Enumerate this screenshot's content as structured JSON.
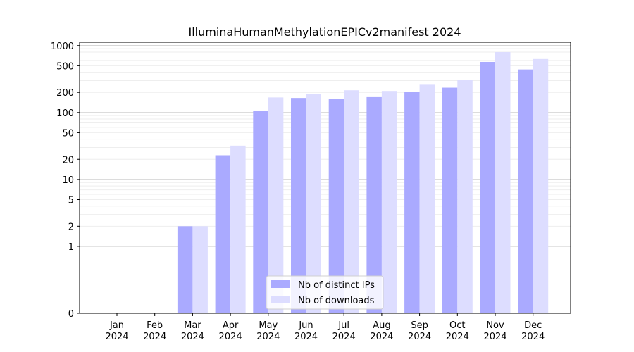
{
  "chart_data": {
    "type": "bar",
    "title": "IlluminaHumanMethylationEPICv2manifest 2024",
    "xlabel": "",
    "ylabel": "",
    "yscale": "symlog",
    "ylim": [
      0,
      1000
    ],
    "y_ticks": [
      0,
      1,
      2,
      5,
      10,
      20,
      50,
      100,
      200,
      500,
      1000
    ],
    "y_tick_labels": [
      "0",
      "1",
      "2",
      "5",
      "10",
      "20",
      "50",
      "100",
      "200",
      "500",
      "1000"
    ],
    "grid": true,
    "legend_position": "bottom-center",
    "categories": [
      {
        "month": "Jan",
        "year": "2024"
      },
      {
        "month": "Feb",
        "year": "2024"
      },
      {
        "month": "Mar",
        "year": "2024"
      },
      {
        "month": "Apr",
        "year": "2024"
      },
      {
        "month": "May",
        "year": "2024"
      },
      {
        "month": "Jun",
        "year": "2024"
      },
      {
        "month": "Jul",
        "year": "2024"
      },
      {
        "month": "Aug",
        "year": "2024"
      },
      {
        "month": "Sep",
        "year": "2024"
      },
      {
        "month": "Oct",
        "year": "2024"
      },
      {
        "month": "Nov",
        "year": "2024"
      },
      {
        "month": "Dec",
        "year": "2024"
      }
    ],
    "series": [
      {
        "name": "Nb of distinct IPs",
        "color": "#aaaaff",
        "values": [
          0,
          0,
          2,
          23,
          105,
          165,
          160,
          170,
          205,
          235,
          570,
          440
        ]
      },
      {
        "name": "Nb of downloads",
        "color": "#ddddff",
        "values": [
          0,
          0,
          2,
          32,
          168,
          190,
          215,
          210,
          260,
          310,
          800,
          630
        ]
      }
    ]
  }
}
